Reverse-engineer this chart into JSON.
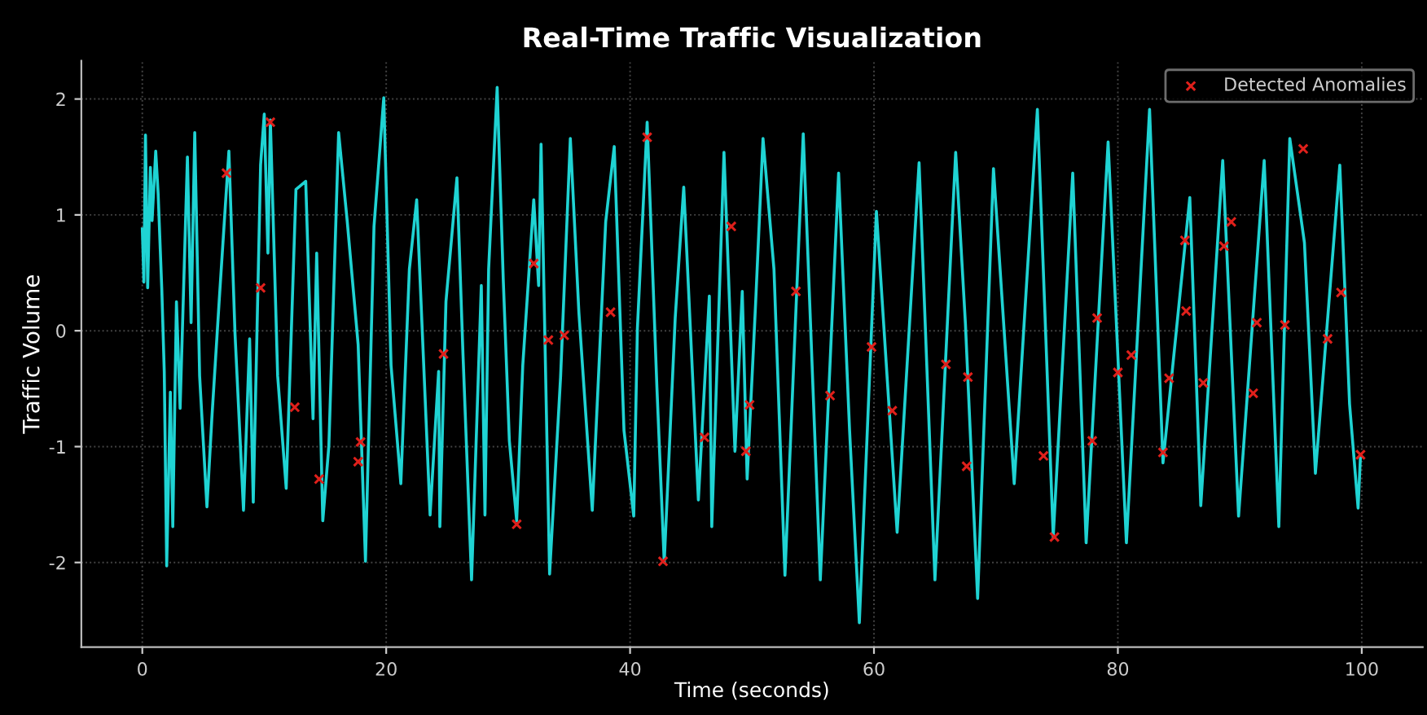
{
  "chart_data": {
    "type": "line",
    "title": "Real-Time Traffic Visualization",
    "xlabel": "Time (seconds)",
    "ylabel": "Traffic Volume",
    "xlim": [
      -5,
      105
    ],
    "xticks": [
      0,
      20,
      40,
      60,
      80,
      100
    ],
    "ylim": [
      -2.73,
      2.33
    ],
    "yticks": [
      -2,
      -1,
      0,
      1,
      2
    ],
    "grid": true,
    "legend": "top right",
    "series": [
      {
        "color": "#1fd3d3",
        "marker": "none",
        "line_style": "solid",
        "x": [
          0,
          0.13,
          0.26,
          0.44,
          0.66,
          0.8,
          1.1,
          1.3,
          1.6,
          1.8,
          2.0,
          2.3,
          2.5,
          2.8,
          3.1,
          3.7,
          4.0,
          4.3,
          4.7,
          5.3,
          5.7,
          6.3,
          7.1,
          7.6,
          8.3,
          8.8,
          9.1,
          9.7,
          10.0,
          10.3,
          10.5,
          11.1,
          11.8,
          12.6,
          13.4,
          14.0,
          14.3,
          14.8,
          15.3,
          16.1,
          16.8,
          17.7,
          18.3,
          19.0,
          19.8,
          20.4,
          21.2,
          21.9,
          22.5,
          23.6,
          24.3,
          24.4,
          24.9,
          25.8,
          26.3,
          27.0,
          27.8,
          28.1,
          28.4,
          29.1,
          29.6,
          30.1,
          30.7,
          31.2,
          32.1,
          32.5,
          32.7,
          33.4,
          34.3,
          35.1,
          35.8,
          36.9,
          38.0,
          38.7,
          39.5,
          40.3,
          40.6,
          41.4,
          42.2,
          42.8,
          43.7,
          44.4,
          45.6,
          46.5,
          46.7,
          47.7,
          48.6,
          49.2,
          49.6,
          50.3,
          50.9,
          51.8,
          52.7,
          54.2,
          55.6,
          57.1,
          58.0,
          58.8,
          60.2,
          61.9,
          63.7,
          65.0,
          66.7,
          67.5,
          68.5,
          69.8,
          71.5,
          73.4,
          74.7,
          76.3,
          77.4,
          79.2,
          80.7,
          82.6,
          83.7,
          85.9,
          86.8,
          88.6,
          89.9,
          92.0,
          93.2,
          94.1,
          95.3,
          96.2,
          98.2,
          99.0,
          99.7,
          99.9
        ],
        "values": [
          0.88,
          0.42,
          1.69,
          0.37,
          1.41,
          0.95,
          1.55,
          1.18,
          0.35,
          -0.35,
          -2.03,
          -0.53,
          -1.69,
          0.25,
          -0.67,
          1.5,
          0.07,
          1.71,
          -0.39,
          -1.52,
          -0.76,
          0.25,
          1.55,
          -0.02,
          -1.55,
          -0.07,
          -1.48,
          1.43,
          1.87,
          0.67,
          1.82,
          -0.39,
          -1.36,
          1.22,
          1.29,
          -0.76,
          0.67,
          -1.64,
          -0.99,
          1.71,
          0.95,
          -0.12,
          -1.99,
          0.9,
          2.01,
          -0.3,
          -1.32,
          0.53,
          1.13,
          -1.59,
          -0.35,
          -1.69,
          0.25,
          1.32,
          -0.21,
          -2.15,
          0.39,
          -1.59,
          0.53,
          2.1,
          0.44,
          -0.95,
          -1.64,
          -0.3,
          1.13,
          0.39,
          1.61,
          -2.1,
          -0.4,
          1.66,
          0.16,
          -1.55,
          0.94,
          1.59,
          -0.86,
          -1.6,
          0.02,
          1.8,
          -0.49,
          -2.0,
          0.11,
          1.24,
          -1.46,
          0.3,
          -1.69,
          1.54,
          -1.04,
          0.34,
          -1.28,
          0.25,
          1.66,
          0.53,
          -2.11,
          1.7,
          -2.15,
          1.36,
          -0.86,
          -2.52,
          1.03,
          -1.74,
          1.45,
          -2.15,
          1.54,
          0.06,
          -2.31,
          1.4,
          -1.32,
          1.91,
          -1.78,
          1.36,
          -1.83,
          1.63,
          -1.83,
          1.91,
          -1.14,
          1.15,
          -1.51,
          1.47,
          -1.6,
          1.47,
          -1.69,
          1.66,
          0.76,
          -1.23,
          1.43,
          -0.63,
          -1.53,
          -1.07
        ]
      },
      {
        "type": "scatter",
        "name": "Detected Anomalies",
        "color": "#e0201b",
        "marker": "cross",
        "x": [
          6.9,
          9.7,
          10.5,
          12.5,
          14.5,
          17.7,
          17.9,
          24.7,
          30.7,
          32.1,
          33.3,
          34.6,
          38.4,
          41.4,
          42.7,
          46.1,
          48.3,
          49.5,
          49.8,
          53.6,
          56.4,
          59.8,
          61.5,
          65.9,
          67.6,
          67.7,
          73.9,
          74.8,
          77.9,
          78.3,
          80.0,
          81.1,
          83.7,
          84.2,
          85.5,
          85.6,
          87.0,
          88.7,
          89.3,
          91.1,
          91.4,
          93.7,
          95.2,
          97.2,
          98.3,
          99.9
        ],
        "values": [
          1.36,
          0.37,
          1.8,
          -0.66,
          -1.28,
          -1.13,
          -0.96,
          -0.2,
          -1.67,
          0.58,
          -0.08,
          -0.04,
          0.16,
          1.67,
          -1.99,
          -0.92,
          0.9,
          -1.04,
          -0.64,
          0.34,
          -0.56,
          -0.14,
          -0.69,
          -0.29,
          -1.17,
          -0.4,
          -1.08,
          -1.78,
          -0.95,
          0.11,
          -0.36,
          -0.21,
          -1.05,
          -0.41,
          0.78,
          0.17,
          -0.45,
          0.73,
          0.94,
          -0.54,
          0.07,
          0.05,
          1.57,
          -0.07,
          0.33,
          -1.07
        ]
      }
    ]
  }
}
